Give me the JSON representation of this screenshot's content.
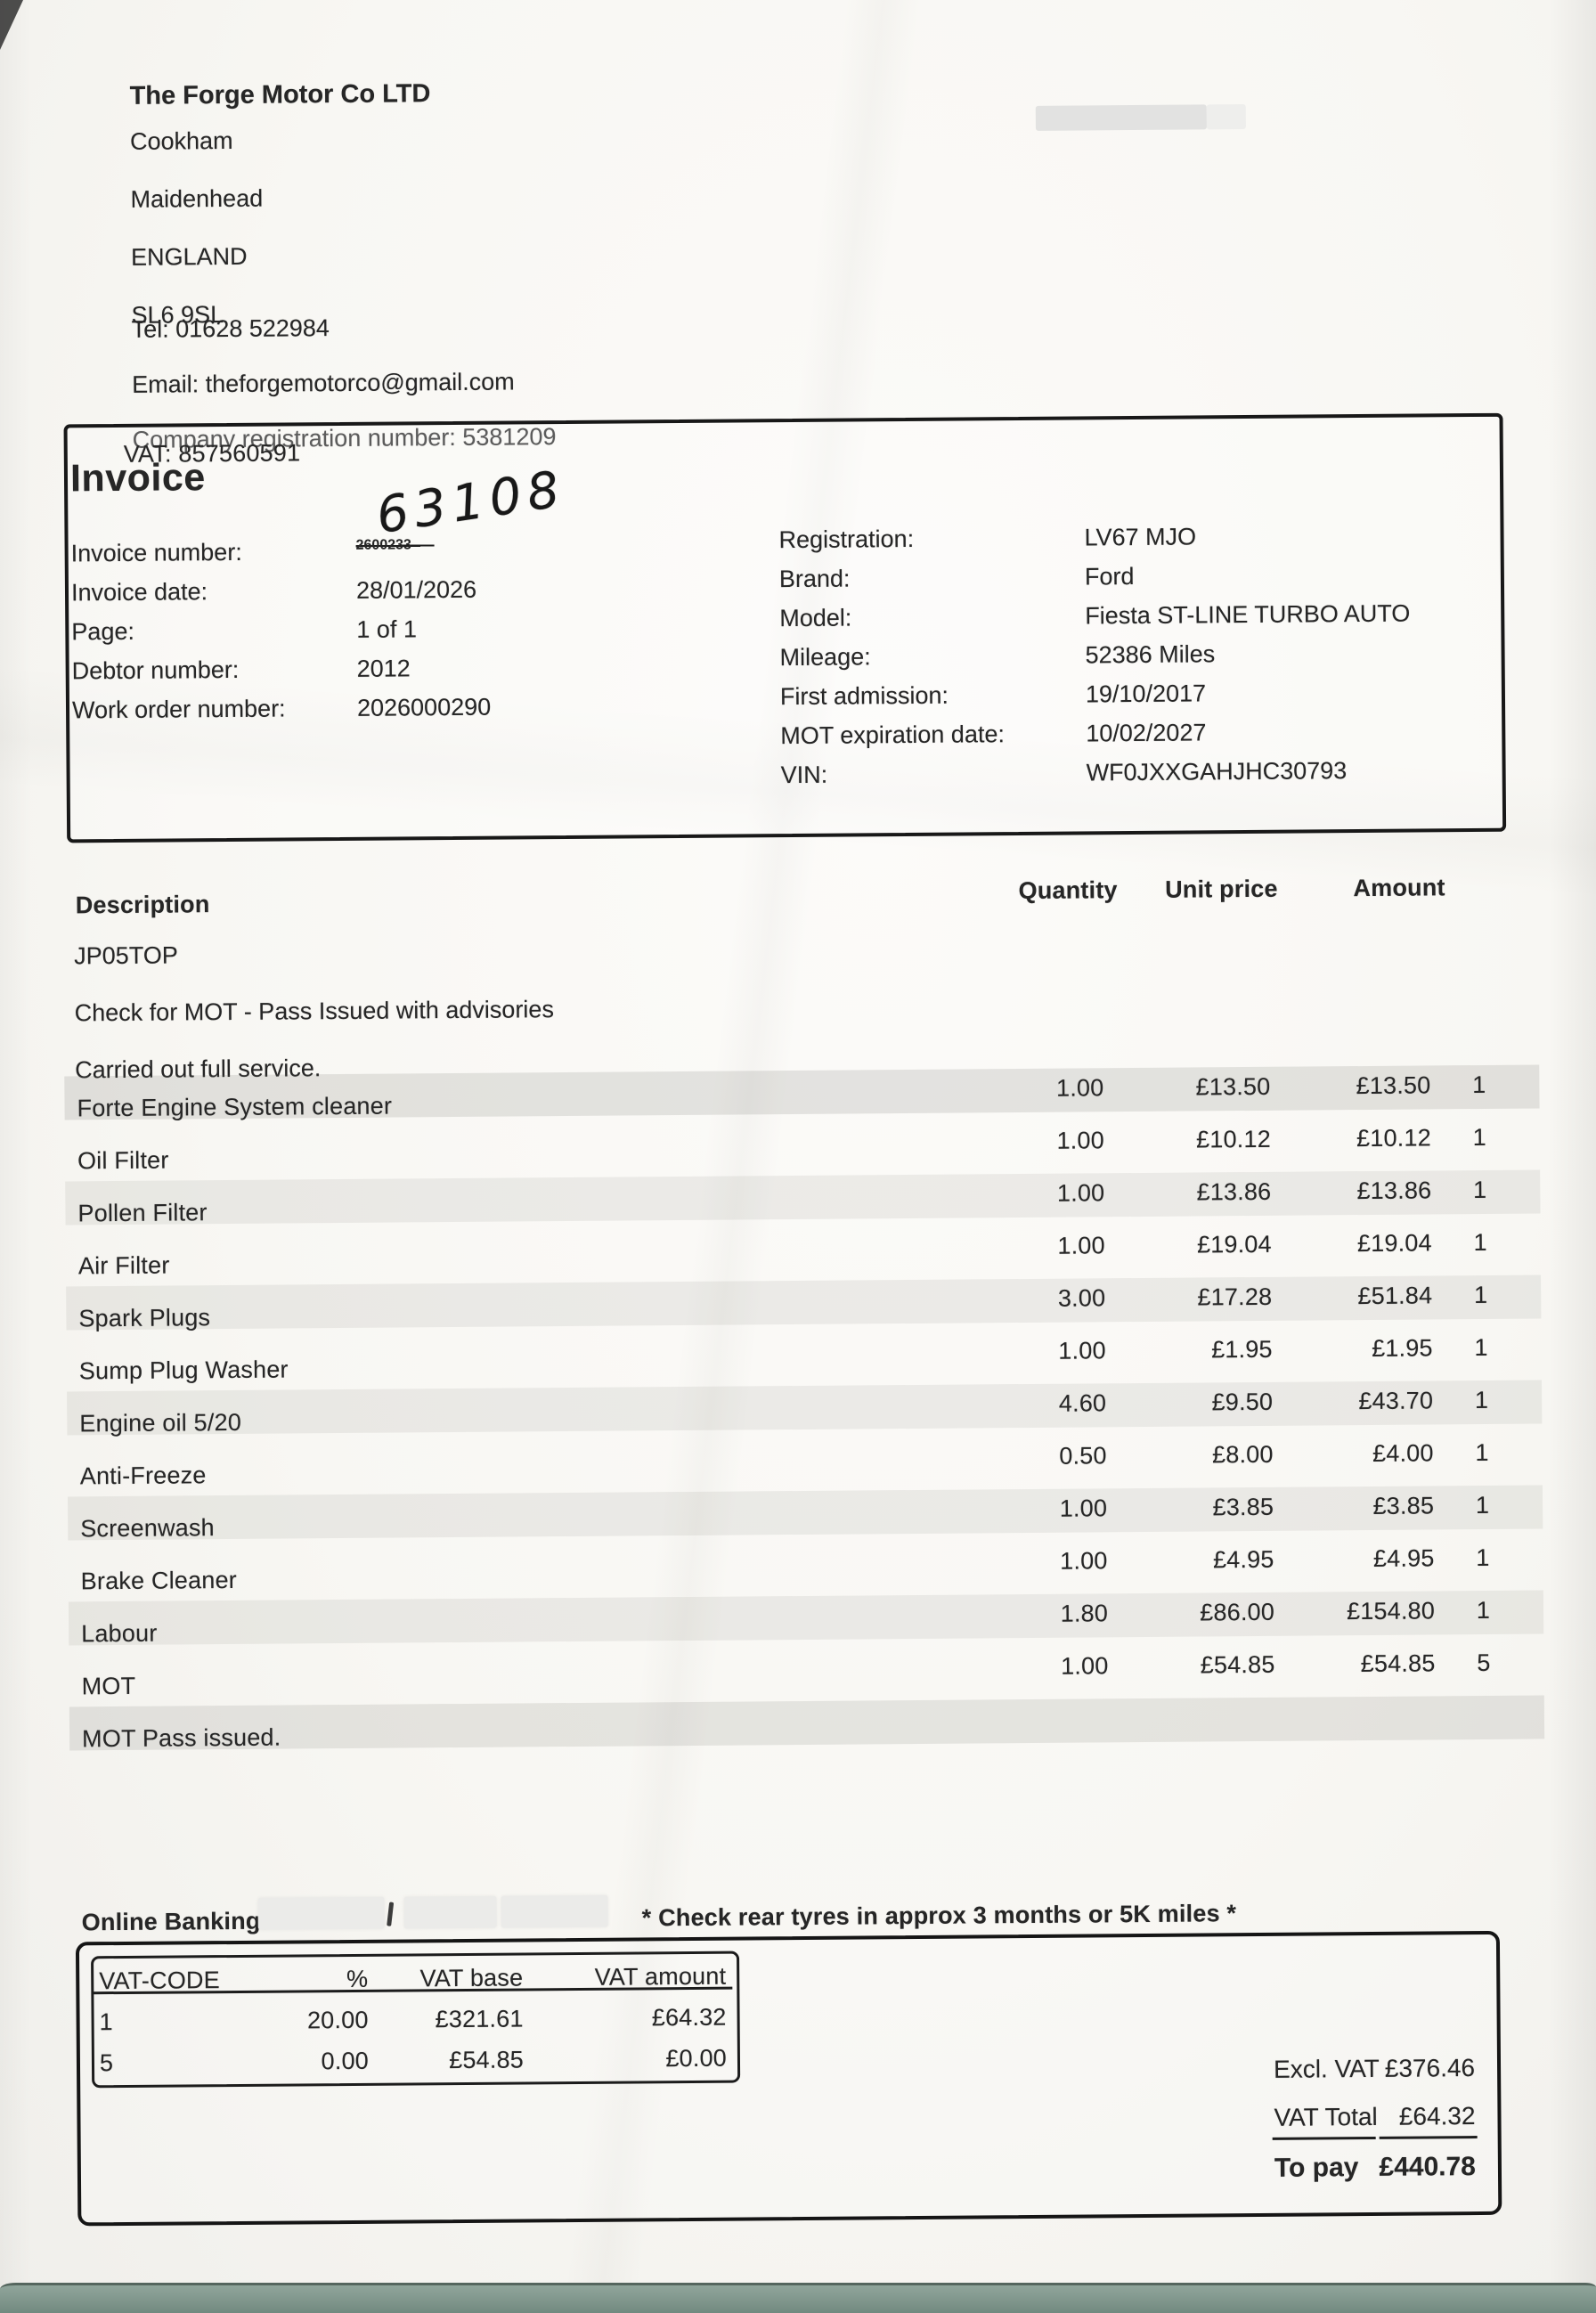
{
  "company": {
    "name": "The Forge Motor Co LTD",
    "address_lines": [
      {
        "text": "Cookham"
      },
      {
        "text": "Maidenhead"
      },
      {
        "text": "ENGLAND"
      },
      {
        "text": "SL6 9SL"
      }
    ],
    "contact_lines": [
      {
        "text": "Tel: 01628 522984"
      },
      {
        "text": "Email: theforgemotorco@gmail.com"
      },
      {
        "text": "Company registration number: 5381209"
      }
    ],
    "vat_line": "VAT: 857560591"
  },
  "invoice": {
    "title": "Invoice",
    "handwritten_number": "63108",
    "number_label": "Invoice number:",
    "number_struck": "2600233",
    "fields": [
      {
        "label": "Invoice date:",
        "value": "28/01/2026"
      },
      {
        "label": "Page:",
        "value": "1 of 1"
      },
      {
        "label": "Debtor number:",
        "value": "2012"
      },
      {
        "label": "Work order number:",
        "value": "2026000290"
      }
    ],
    "vehicle_fields": [
      {
        "label": "Registration:",
        "value": "LV67 MJO"
      },
      {
        "label": "Brand:",
        "value": "Ford"
      },
      {
        "label": "Model:",
        "value": "Fiesta ST-LINE TURBO AUTO"
      },
      {
        "label": "Mileage:",
        "value": "52386 Miles"
      },
      {
        "label": "First admission:",
        "value": "19/10/2017"
      },
      {
        "label": "MOT expiration date:",
        "value": "10/02/2027"
      },
      {
        "label": "VIN:",
        "value": "WF0JXXGAHJHC30793"
      }
    ]
  },
  "items": {
    "headers": {
      "description": "Description",
      "quantity": "Quantity",
      "unit_price": "Unit price",
      "amount": "Amount"
    },
    "notes": [
      {
        "text": "JP05TOP"
      },
      {
        "text": "Check for MOT - Pass Issued with advisories"
      },
      {
        "text": "Carried out full service."
      }
    ],
    "rows": [
      {
        "description": "Forte Engine System cleaner",
        "quantity": "1.00",
        "unit_price": "£13.50",
        "amount": "£13.50",
        "vat_code": "1"
      },
      {
        "description": "Oil Filter",
        "quantity": "1.00",
        "unit_price": "£10.12",
        "amount": "£10.12",
        "vat_code": "1"
      },
      {
        "description": "Pollen Filter",
        "quantity": "1.00",
        "unit_price": "£13.86",
        "amount": "£13.86",
        "vat_code": "1"
      },
      {
        "description": "Air Filter",
        "quantity": "1.00",
        "unit_price": "£19.04",
        "amount": "£19.04",
        "vat_code": "1"
      },
      {
        "description": "Spark Plugs",
        "quantity": "3.00",
        "unit_price": "£17.28",
        "amount": "£51.84",
        "vat_code": "1"
      },
      {
        "description": "Sump Plug Washer",
        "quantity": "1.00",
        "unit_price": "£1.95",
        "amount": "£1.95",
        "vat_code": "1"
      },
      {
        "description": "Engine oil 5/20",
        "quantity": "4.60",
        "unit_price": "£9.50",
        "amount": "£43.70",
        "vat_code": "1"
      },
      {
        "description": "Anti-Freeze",
        "quantity": "0.50",
        "unit_price": "£8.00",
        "amount": "£4.00",
        "vat_code": "1"
      },
      {
        "description": "Screenwash",
        "quantity": "1.00",
        "unit_price": "£3.85",
        "amount": "£3.85",
        "vat_code": "1"
      },
      {
        "description": "Brake Cleaner",
        "quantity": "1.00",
        "unit_price": "£4.95",
        "amount": "£4.95",
        "vat_code": "1"
      },
      {
        "description": "Labour",
        "quantity": "1.80",
        "unit_price": "£86.00",
        "amount": "£154.80",
        "vat_code": "1"
      },
      {
        "description": "MOT",
        "quantity": "1.00",
        "unit_price": "£54.85",
        "amount": "£54.85",
        "vat_code": "5"
      },
      {
        "description": "MOT Pass issued.",
        "quantity": "",
        "unit_price": "",
        "amount": "",
        "vat_code": ""
      }
    ]
  },
  "banking": {
    "label": "Online Banking:",
    "tyre_note": "* Check rear tyres in approx 3 months or 5K miles *"
  },
  "vat_table": {
    "headers": {
      "code": "VAT-CODE",
      "pct": "%",
      "base": "VAT base",
      "amount": "VAT amount"
    },
    "rows": [
      {
        "code": "1",
        "pct": "20.00",
        "base": "£321.61",
        "amount": "£64.32"
      },
      {
        "code": "5",
        "pct": "0.00",
        "base": "£54.85",
        "amount": "£0.00"
      }
    ]
  },
  "totals": {
    "excl_vat_label": "Excl. VAT",
    "excl_vat_value": "£376.46",
    "vat_total_label": "VAT Total",
    "vat_total_value": "£64.32",
    "to_pay_label": "To pay",
    "to_pay_value": "£440.78"
  },
  "colors": {
    "desk_edge": "#6f877d",
    "paper": "#f8f7f3",
    "ink": "#262626"
  }
}
